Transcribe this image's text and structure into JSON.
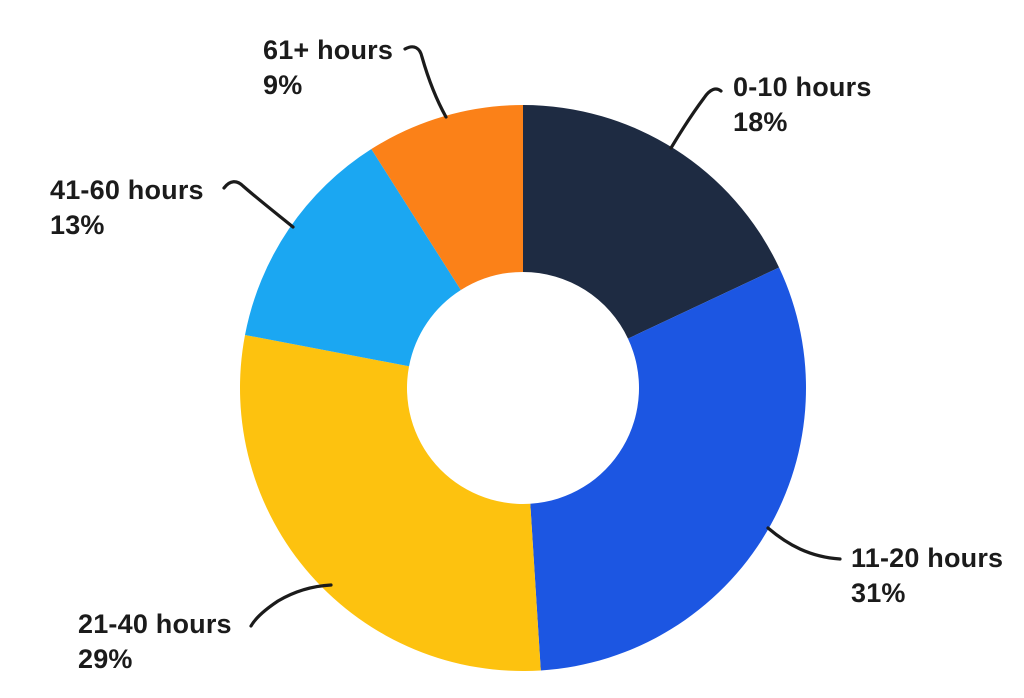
{
  "chart_data": {
    "type": "pie",
    "subtype": "donut",
    "title": "",
    "categories": [
      "0-10 hours",
      "11-20 hours",
      "21-40 hours",
      "41-60 hours",
      "61+ hours"
    ],
    "values": [
      18,
      31,
      29,
      13,
      9
    ],
    "segments": [
      {
        "label": "0-10 hours",
        "value": 18,
        "pct_text": "18%",
        "color": "#1E2B42"
      },
      {
        "label": "11-20 hours",
        "value": 31,
        "pct_text": "31%",
        "color": "#1C56E2"
      },
      {
        "label": "21-40 hours",
        "value": 29,
        "pct_text": "29%",
        "color": "#FDC20F"
      },
      {
        "label": "41-60 hours",
        "value": 13,
        "pct_text": "13%",
        "color": "#1BA7F2"
      },
      {
        "label": "61+ hours",
        "value": 9,
        "pct_text": "9%",
        "color": "#FB8118"
      }
    ],
    "start_angle_deg": -90,
    "direction": "clockwise",
    "donut_hole_ratio": 0.41,
    "legend_position": "outside-callouts-with-leader-lines",
    "background_color": "#FFFFFF",
    "label_color": "#1B1B1B",
    "leader_line_color": "#1B1B1B"
  }
}
